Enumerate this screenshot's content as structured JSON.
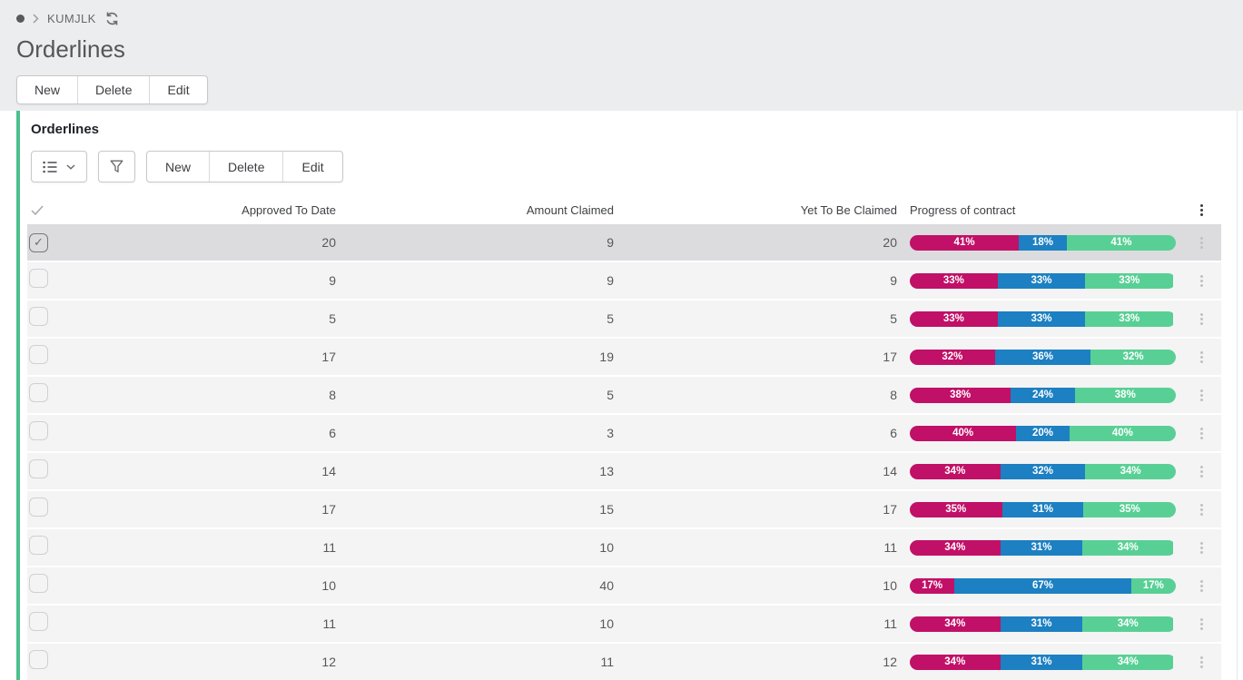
{
  "breadcrumb": {
    "item": "KUMJLK"
  },
  "page": {
    "title": "Orderlines"
  },
  "top_actions": [
    "New",
    "Delete",
    "Edit"
  ],
  "panel": {
    "title": "Orderlines",
    "toolbar": {
      "actions": [
        "New",
        "Delete",
        "Edit"
      ]
    }
  },
  "table": {
    "columns": [
      "Approved To Date",
      "Amount Claimed",
      "Yet To Be Claimed",
      "Progress of contract"
    ],
    "rows": [
      {
        "approved": 20,
        "claimed": 9,
        "yet": 20,
        "progress": [
          41,
          18,
          41
        ],
        "selected": true
      },
      {
        "approved": 9,
        "claimed": 9,
        "yet": 9,
        "progress": [
          33,
          33,
          33
        ],
        "selected": false
      },
      {
        "approved": 5,
        "claimed": 5,
        "yet": 5,
        "progress": [
          33,
          33,
          33
        ],
        "selected": false
      },
      {
        "approved": 17,
        "claimed": 19,
        "yet": 17,
        "progress": [
          32,
          36,
          32
        ],
        "selected": false
      },
      {
        "approved": 8,
        "claimed": 5,
        "yet": 8,
        "progress": [
          38,
          24,
          38
        ],
        "selected": false
      },
      {
        "approved": 6,
        "claimed": 3,
        "yet": 6,
        "progress": [
          40,
          20,
          40
        ],
        "selected": false
      },
      {
        "approved": 14,
        "claimed": 13,
        "yet": 14,
        "progress": [
          34,
          32,
          34
        ],
        "selected": false
      },
      {
        "approved": 17,
        "claimed": 15,
        "yet": 17,
        "progress": [
          35,
          31,
          35
        ],
        "selected": false
      },
      {
        "approved": 11,
        "claimed": 10,
        "yet": 11,
        "progress": [
          34,
          31,
          34
        ],
        "selected": false
      },
      {
        "approved": 10,
        "claimed": 40,
        "yet": 10,
        "progress": [
          17,
          67,
          17
        ],
        "selected": false
      },
      {
        "approved": 11,
        "claimed": 10,
        "yet": 11,
        "progress": [
          34,
          31,
          34
        ],
        "selected": false
      },
      {
        "approved": 12,
        "claimed": 11,
        "yet": 12,
        "progress": [
          34,
          31,
          34
        ],
        "selected": false
      }
    ]
  },
  "colors": {
    "top_band": "#ecedee",
    "panel_accent": "#4cc18c",
    "row_bg": "#f4f4f5",
    "selected_row": "#dcdcde",
    "bar_magenta": "#c11067",
    "bar_blue": "#1c80c2",
    "bar_green": "#58d095"
  }
}
